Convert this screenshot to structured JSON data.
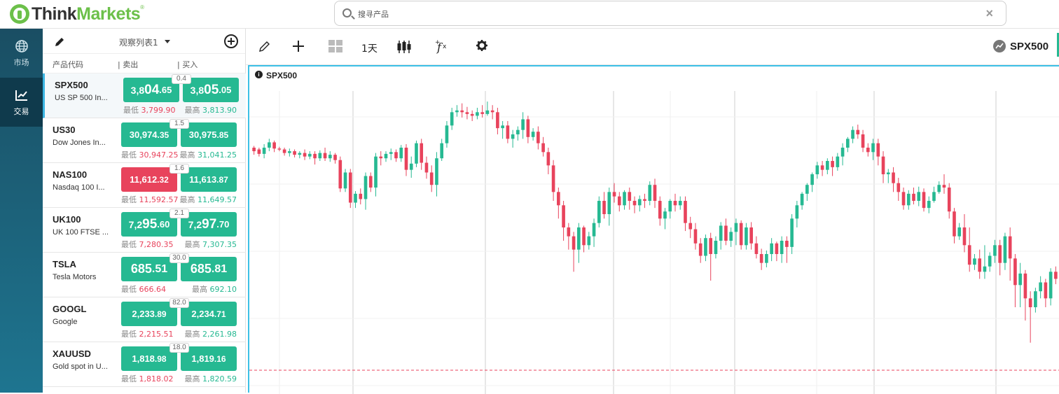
{
  "header": {
    "logo_think": "Think",
    "logo_markets": "Markets",
    "logo_reg": "®",
    "search_placeholder": "搜寻产品",
    "clear": "×"
  },
  "nav": [
    {
      "label": "市场",
      "icon": "globe-icon"
    },
    {
      "label": "交易",
      "icon": "chart-trend-icon"
    }
  ],
  "watchlist": {
    "title": "观察列表1",
    "columns": {
      "symbol": "产品代码",
      "sell": "| 卖出",
      "buy": "| 买入"
    },
    "rows": [
      {
        "symbol": "SPX500",
        "desc": "US SP 500 In...",
        "spread": "0.4",
        "sell_a": "3,8",
        "sell_b": "04",
        "sell_c": ".65",
        "buy_a": "3,8",
        "buy_b": "05",
        "buy_c": ".05",
        "sell_color": "green",
        "low_label": "最低",
        "low": "3,799.90",
        "high_label": "最高",
        "high": "3,813.90"
      },
      {
        "symbol": "US30",
        "desc": "Dow Jones In...",
        "spread": "1.5",
        "sell_a": "30,974",
        "sell_b": "",
        "sell_c": ".35",
        "buy_a": "30,975",
        "buy_b": "",
        "buy_c": ".85",
        "sell_color": "green",
        "low_label": "最低",
        "low": "30,947.25",
        "high_label": "最高",
        "high": "31,041.25"
      },
      {
        "symbol": "NAS100",
        "desc": "Nasdaq 100 I...",
        "spread": "1.6",
        "sell_a": "11,612",
        "sell_b": "",
        "sell_c": ".32",
        "buy_a": "11,613",
        "buy_b": "",
        "buy_c": ".87",
        "sell_color": "red",
        "low_label": "最低",
        "low": "11,592.57",
        "high_label": "最高",
        "high": "11,649.57"
      },
      {
        "symbol": "UK100",
        "desc": "UK 100 FTSE ...",
        "spread": "2.1",
        "sell_a": "7,2",
        "sell_b": "95",
        "sell_c": ".60",
        "buy_a": "7,2",
        "buy_b": "97",
        "buy_c": ".70",
        "sell_color": "green",
        "low_label": "最低",
        "low": "7,280.35",
        "high_label": "最高",
        "high": "7,307.35"
      },
      {
        "symbol": "TSLA",
        "desc": "Tesla Motors",
        "spread": "30.0",
        "sell_a": "685",
        "sell_b": "",
        "sell_c": ".51",
        "buy_a": "685",
        "buy_b": "",
        "buy_c": ".81",
        "sell_color": "green",
        "low_label": "最低",
        "low": "666.64",
        "high_label": "最高",
        "high": "692.10"
      },
      {
        "symbol": "GOOGL",
        "desc": "Google",
        "spread": "82.0",
        "sell_a": "2,233",
        "sell_b": "",
        "sell_c": ".89",
        "buy_a": "2,234",
        "buy_b": "",
        "buy_c": ".71",
        "sell_color": "green",
        "low_label": "最低",
        "low": "2,215.51",
        "high_label": "最高",
        "high": "2,261.98"
      },
      {
        "symbol": "XAUUSD",
        "desc": "Gold spot in U...",
        "spread": "18.0",
        "sell_a": "1,818",
        "sell_b": "",
        "sell_c": ".98",
        "buy_a": "1,819",
        "buy_b": "",
        "buy_c": ".16",
        "sell_color": "green",
        "low_label": "最低",
        "low": "1,818.02",
        "high_label": "最高",
        "high": "1,820.59"
      }
    ]
  },
  "toolbar": {
    "interval": "1天",
    "symbol": "SPX500",
    "icons": [
      "pencil-icon",
      "crosshair-icon",
      "layout-icon",
      "candles-icon",
      "fx-icon",
      "gear-icon"
    ]
  },
  "chart": {
    "title": "SPX500",
    "info": "i",
    "colors": {
      "up": "#26b992",
      "down": "#e8435c"
    }
  },
  "chart_data": {
    "type": "candlestick",
    "title": "SPX500",
    "y_unit": "price (relative)",
    "candles": [
      [
        200,
        196,
        192,
        202
      ],
      [
        198,
        193,
        190,
        200
      ],
      [
        193,
        200,
        188,
        204
      ],
      [
        200,
        206,
        196,
        210
      ],
      [
        206,
        199,
        195,
        208
      ],
      [
        199,
        198,
        196,
        201
      ],
      [
        198,
        194,
        191,
        200
      ],
      [
        194,
        196,
        190,
        199
      ],
      [
        196,
        192,
        189,
        198
      ],
      [
        192,
        194,
        188,
        196
      ],
      [
        194,
        190,
        186,
        198
      ],
      [
        190,
        193,
        187,
        196
      ],
      [
        193,
        188,
        181,
        196
      ],
      [
        188,
        194,
        185,
        197
      ],
      [
        194,
        188,
        185,
        200
      ],
      [
        188,
        192,
        184,
        196
      ],
      [
        192,
        186,
        182,
        194
      ],
      [
        186,
        154,
        150,
        190
      ],
      [
        154,
        172,
        150,
        176
      ],
      [
        172,
        138,
        132,
        176
      ],
      [
        138,
        148,
        132,
        151
      ],
      [
        148,
        142,
        136,
        154
      ],
      [
        142,
        168,
        130,
        172
      ],
      [
        168,
        155,
        150,
        172
      ],
      [
        155,
        190,
        145,
        194
      ],
      [
        190,
        188,
        180,
        196
      ],
      [
        188,
        193,
        184,
        196
      ],
      [
        193,
        195,
        186,
        199
      ],
      [
        195,
        188,
        184,
        198
      ],
      [
        188,
        200,
        184,
        203
      ],
      [
        200,
        175,
        168,
        204
      ],
      [
        175,
        182,
        166,
        190
      ],
      [
        182,
        205,
        178,
        208
      ],
      [
        205,
        183,
        175,
        210
      ],
      [
        183,
        172,
        165,
        190
      ],
      [
        172,
        158,
        150,
        180
      ],
      [
        158,
        188,
        145,
        195
      ],
      [
        188,
        205,
        185,
        210
      ],
      [
        205,
        225,
        200,
        230
      ],
      [
        225,
        240,
        220,
        245
      ],
      [
        240,
        242,
        235,
        248
      ],
      [
        242,
        240,
        234,
        250
      ],
      [
        240,
        238,
        232,
        246
      ],
      [
        238,
        236,
        230,
        242
      ],
      [
        236,
        240,
        232,
        245
      ],
      [
        240,
        238,
        234,
        248
      ],
      [
        238,
        242,
        236,
        252
      ],
      [
        242,
        240,
        232,
        248
      ],
      [
        240,
        222,
        215,
        245
      ],
      [
        222,
        225,
        210,
        230
      ],
      [
        225,
        210,
        205,
        230
      ],
      [
        210,
        215,
        200,
        220
      ],
      [
        215,
        220,
        208,
        224
      ],
      [
        220,
        232,
        210,
        240
      ],
      [
        232,
        212,
        205,
        236
      ],
      [
        212,
        218,
        208,
        222
      ],
      [
        218,
        205,
        198,
        224
      ],
      [
        205,
        195,
        190,
        212
      ],
      [
        195,
        180,
        170,
        200
      ],
      [
        180,
        150,
        140,
        186
      ],
      [
        150,
        135,
        120,
        155
      ],
      [
        135,
        110,
        95,
        140
      ],
      [
        110,
        100,
        85,
        115
      ],
      [
        100,
        85,
        60,
        105
      ],
      [
        85,
        110,
        70,
        115
      ],
      [
        110,
        90,
        82,
        112
      ],
      [
        90,
        100,
        85,
        105
      ],
      [
        100,
        115,
        88,
        120
      ],
      [
        115,
        140,
        110,
        145
      ],
      [
        140,
        125,
        120,
        150
      ],
      [
        125,
        150,
        112,
        155
      ],
      [
        150,
        145,
        138,
        160
      ],
      [
        145,
        135,
        128,
        150
      ],
      [
        135,
        150,
        130,
        152
      ],
      [
        150,
        140,
        130,
        155
      ],
      [
        140,
        135,
        126,
        145
      ],
      [
        135,
        142,
        128,
        146
      ],
      [
        142,
        140,
        132,
        148
      ],
      [
        140,
        158,
        135,
        162
      ],
      [
        158,
        140,
        132,
        165
      ],
      [
        140,
        120,
        112,
        145
      ],
      [
        120,
        128,
        108,
        132
      ],
      [
        128,
        140,
        120,
        142
      ],
      [
        140,
        135,
        128,
        148
      ],
      [
        135,
        140,
        130,
        145
      ],
      [
        140,
        115,
        106,
        145
      ],
      [
        115,
        108,
        98,
        122
      ],
      [
        108,
        92,
        85,
        115
      ],
      [
        92,
        78,
        70,
        98
      ],
      [
        78,
        98,
        72,
        102
      ],
      [
        98,
        80,
        50,
        104
      ],
      [
        80,
        95,
        75,
        100
      ],
      [
        95,
        112,
        85,
        116
      ],
      [
        112,
        95,
        90,
        120
      ],
      [
        95,
        105,
        88,
        110
      ],
      [
        105,
        115,
        90,
        120
      ],
      [
        115,
        90,
        85,
        118
      ],
      [
        90,
        110,
        85,
        115
      ],
      [
        110,
        92,
        85,
        116
      ],
      [
        92,
        80,
        75,
        100
      ],
      [
        80,
        70,
        62,
        86
      ],
      [
        70,
        80,
        65,
        84
      ],
      [
        80,
        92,
        72,
        98
      ],
      [
        92,
        80,
        72,
        94
      ],
      [
        80,
        95,
        70,
        100
      ],
      [
        95,
        88,
        70,
        100
      ],
      [
        88,
        120,
        80,
        125
      ],
      [
        120,
        135,
        110,
        140
      ],
      [
        135,
        148,
        130,
        150
      ],
      [
        148,
        158,
        140,
        160
      ],
      [
        158,
        170,
        150,
        172
      ],
      [
        170,
        180,
        165,
        184
      ],
      [
        180,
        175,
        168,
        185
      ],
      [
        175,
        185,
        170,
        188
      ],
      [
        185,
        178,
        168,
        190
      ],
      [
        178,
        190,
        174,
        194
      ],
      [
        190,
        200,
        180,
        205
      ],
      [
        200,
        210,
        195,
        212
      ],
      [
        210,
        220,
        205,
        224
      ],
      [
        220,
        215,
        210,
        226
      ],
      [
        215,
        200,
        195,
        220
      ],
      [
        200,
        195,
        190,
        205
      ],
      [
        195,
        205,
        186,
        210
      ],
      [
        205,
        190,
        180,
        210
      ],
      [
        190,
        170,
        160,
        196
      ],
      [
        170,
        172,
        160,
        176
      ],
      [
        172,
        160,
        150,
        178
      ],
      [
        160,
        150,
        140,
        166
      ],
      [
        150,
        135,
        130,
        155
      ],
      [
        135,
        148,
        130,
        152
      ],
      [
        148,
        140,
        136,
        155
      ],
      [
        140,
        150,
        134,
        156
      ],
      [
        150,
        132,
        128,
        154
      ],
      [
        132,
        140,
        126,
        145
      ],
      [
        140,
        150,
        138,
        156
      ],
      [
        150,
        158,
        148,
        162
      ],
      [
        158,
        155,
        148,
        170
      ],
      [
        155,
        128,
        120,
        160
      ],
      [
        128,
        100,
        92,
        132
      ],
      [
        100,
        110,
        96,
        115
      ],
      [
        110,
        90,
        82,
        125
      ],
      [
        90,
        68,
        60,
        110
      ],
      [
        68,
        75,
        62,
        80
      ],
      [
        75,
        60,
        52,
        85
      ],
      [
        60,
        66,
        52,
        90
      ],
      [
        66,
        78,
        60,
        82
      ],
      [
        78,
        90,
        70,
        96
      ],
      [
        90,
        70,
        56,
        96
      ],
      [
        70,
        100,
        62,
        104
      ],
      [
        100,
        75,
        50,
        110
      ],
      [
        75,
        45,
        20,
        80
      ],
      [
        45,
        58,
        20,
        70
      ],
      [
        58,
        30,
        5,
        62
      ],
      [
        30,
        20,
        -20,
        38
      ],
      [
        20,
        38,
        14,
        42
      ],
      [
        38,
        48,
        30,
        55
      ],
      [
        48,
        30,
        20,
        52
      ],
      [
        30,
        60,
        22,
        64
      ],
      [
        60,
        52,
        46,
        66
      ]
    ],
    "xlim": [
      0,
      160
    ],
    "grid": true,
    "reference_line": "dashed red at last price"
  }
}
